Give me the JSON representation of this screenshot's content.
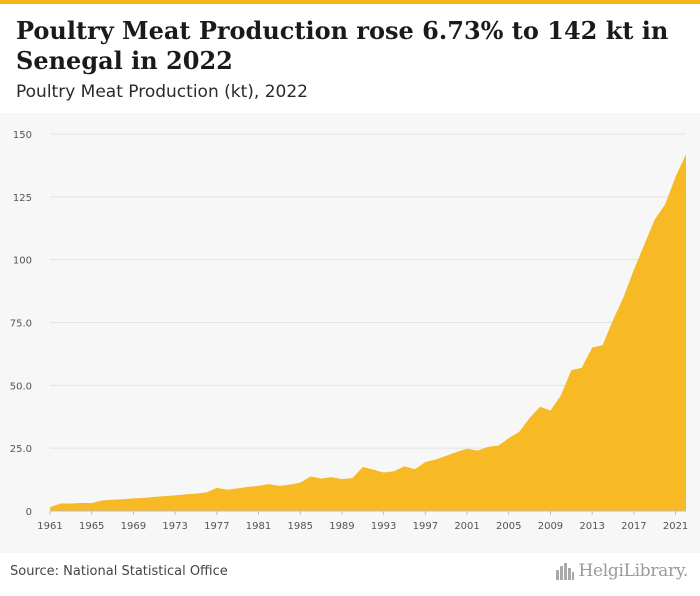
{
  "header": {
    "title": "Poultry Meat Production rose 6.73% to 142 kt in Senegal in 2022",
    "subtitle": "Poultry Meat Production (kt), 2022"
  },
  "footer": {
    "source": "Source: National Statistical Office",
    "logo_text": "HelgiLibrary."
  },
  "colors": {
    "accent": "#f5b31c",
    "area_fill": "#f7b924",
    "grid": "#e3e3e3",
    "chart_bg": "#f7f7f7"
  },
  "chart_data": {
    "type": "area",
    "title": "Poultry Meat Production (kt), 2022",
    "xlabel": "",
    "ylabel": "",
    "ylim": [
      0,
      150
    ],
    "xlim": [
      1961,
      2022
    ],
    "yticks": [
      0,
      25,
      50,
      75,
      100,
      125,
      150
    ],
    "ytick_labels": [
      "0",
      "25.0",
      "50.0",
      "75.0",
      "100",
      "125",
      "150"
    ],
    "xticks": [
      1961,
      1965,
      1969,
      1973,
      1977,
      1981,
      1985,
      1989,
      1993,
      1997,
      2001,
      2005,
      2009,
      2013,
      2017,
      2021
    ],
    "grid": true,
    "x": [
      1961,
      1962,
      1963,
      1964,
      1965,
      1966,
      1967,
      1968,
      1969,
      1970,
      1971,
      1972,
      1973,
      1974,
      1975,
      1976,
      1977,
      1978,
      1979,
      1980,
      1981,
      1982,
      1983,
      1984,
      1985,
      1986,
      1987,
      1988,
      1989,
      1990,
      1991,
      1992,
      1993,
      1994,
      1995,
      1996,
      1997,
      1998,
      1999,
      2000,
      2001,
      2002,
      2003,
      2004,
      2005,
      2006,
      2007,
      2008,
      2009,
      2010,
      2011,
      2012,
      2013,
      2014,
      2015,
      2016,
      2017,
      2018,
      2019,
      2020,
      2021,
      2022
    ],
    "series": [
      {
        "values": [
          1.5,
          3.0,
          3.0,
          3.2,
          3.2,
          4.2,
          4.5,
          4.7,
          5.0,
          5.2,
          5.6,
          5.9,
          6.2,
          6.6,
          6.9,
          7.4,
          9.2,
          8.5,
          9.0,
          9.6,
          10.0,
          10.7,
          10.0,
          10.5,
          11.3,
          13.8,
          12.9,
          13.5,
          12.7,
          13.1,
          17.5,
          16.5,
          15.3,
          15.8,
          17.8,
          16.6,
          19.5,
          20.5,
          22.0,
          23.5,
          24.8,
          24.0,
          25.5,
          26.0,
          29.0,
          31.5,
          37.0,
          41.5,
          40.0,
          46.0,
          56.0,
          57.0,
          65.0,
          66.0,
          76.0,
          85.0,
          96.0,
          106.0,
          116.0,
          122.0,
          133.0,
          142.0
        ]
      }
    ]
  }
}
